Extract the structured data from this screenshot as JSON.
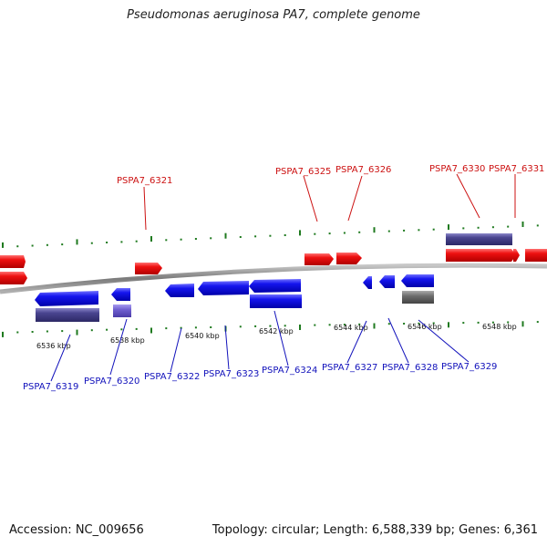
{
  "title": "Pseudomonas aeruginosa PA7, complete genome",
  "footer": {
    "accession": "Accession: NC_009656",
    "summary": "Topology: circular; Length: 6,588,339 bp; Genes: 6,361"
  },
  "colors": {
    "forward_gene": "#ee1111",
    "reverse_gene": "#1111ee",
    "cds_dark": "#4a4590",
    "cds_light": "#7060d0",
    "pseudo_gray": "#6e6e6e",
    "backbone": "#8a8a8a",
    "tick": "#1f7a1f",
    "label_top": "#cc1111",
    "label_bottom": "#1111bb"
  },
  "scale_labels": [
    "6536 kbp",
    "6538 kbp",
    "6540 kbp",
    "6542 kbp",
    "6544 kbp",
    "6546 kbp",
    "6548 kbp"
  ],
  "top_labels": [
    "PSPA7_6321",
    "PSPA7_6325",
    "PSPA7_6326",
    "PSPA7_6330",
    "PSPA7_6331"
  ],
  "bottom_labels": [
    "PSPA7_6319",
    "PSPA7_6320",
    "PSPA7_6322",
    "PSPA7_6323",
    "PSPA7_6324",
    "PSPA7_6327",
    "PSPA7_6328",
    "PSPA7_6329"
  ]
}
